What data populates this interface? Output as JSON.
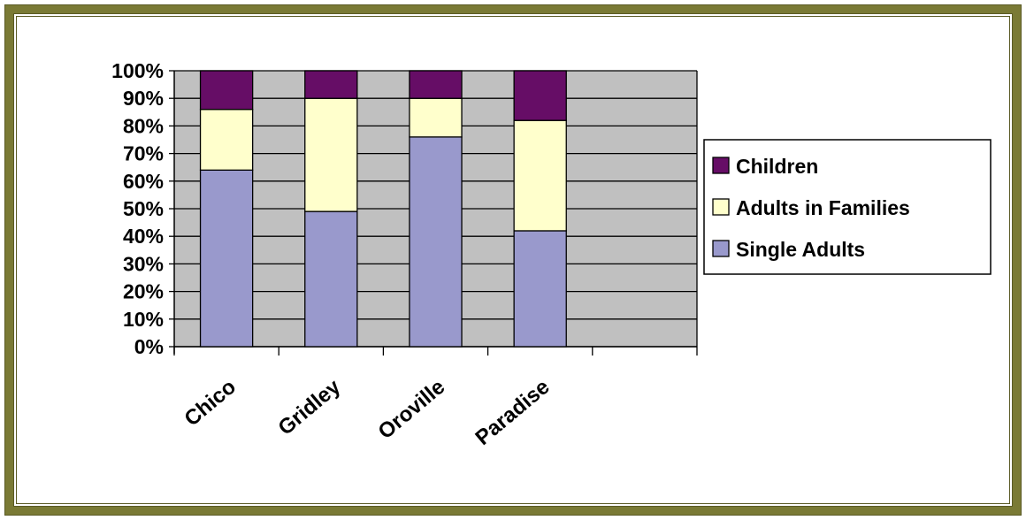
{
  "chart_data": {
    "type": "bar",
    "stacked": true,
    "percent": true,
    "categories": [
      "Chico",
      "Gridley",
      "Oroville",
      "Paradise"
    ],
    "series": [
      {
        "name": "Single Adults",
        "values": [
          64,
          49,
          76,
          42
        ],
        "color": "#9999cc"
      },
      {
        "name": "Adults in Families",
        "values": [
          22,
          41,
          14,
          40
        ],
        "color": "#ffffcc"
      },
      {
        "name": "Children",
        "values": [
          14,
          10,
          10,
          18
        ],
        "color": "#660d66"
      }
    ],
    "yticks": [
      "0%",
      "10%",
      "20%",
      "30%",
      "40%",
      "50%",
      "60%",
      "70%",
      "80%",
      "90%",
      "100%"
    ],
    "ylim": [
      0,
      100
    ],
    "grid": true,
    "legend_position": "right",
    "plot_background": "#c0c0c0",
    "frame_color": "#7a7a35"
  }
}
